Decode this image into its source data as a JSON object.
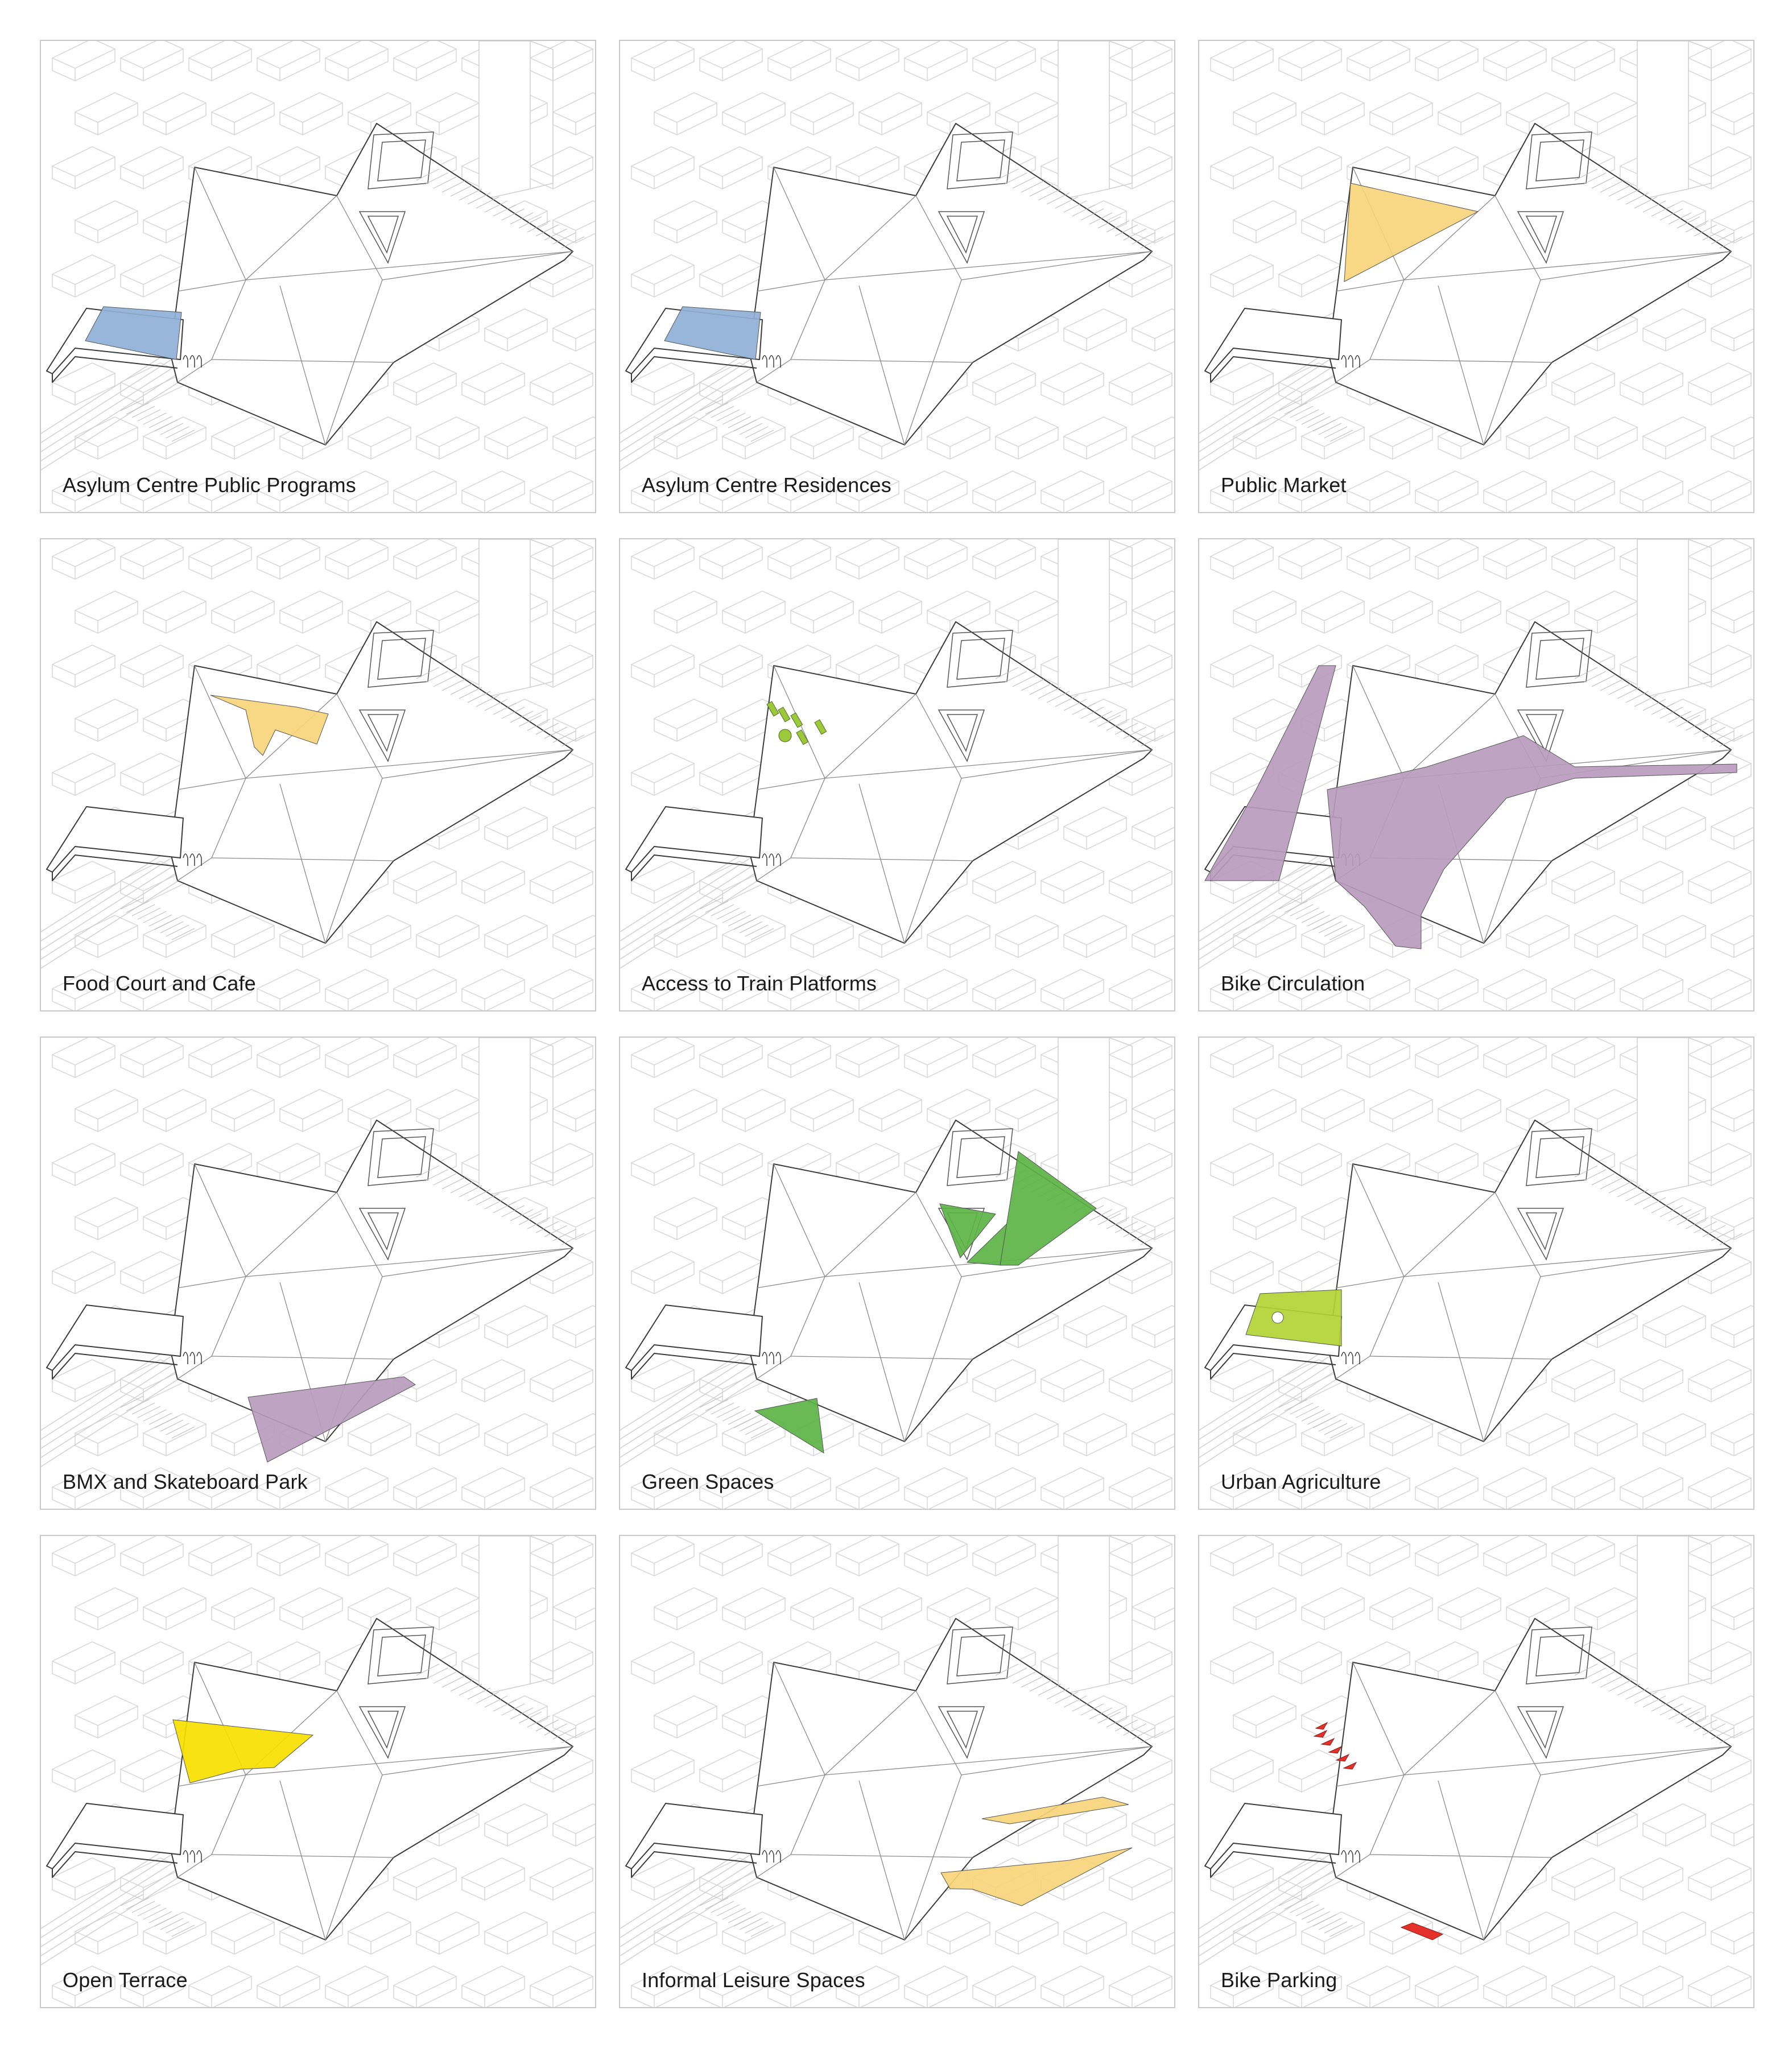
{
  "panels": [
    {
      "caption": "Asylum Centre Public Programs",
      "highlight": {
        "name": "public-programs-area",
        "color": "#8fb0d6"
      }
    },
    {
      "caption": "Asylum Centre Residences",
      "highlight": {
        "name": "residences-area",
        "color": "#8fb0d6"
      }
    },
    {
      "caption": "Public Market",
      "highlight": {
        "name": "public-market-area",
        "color": "#f7d57a"
      }
    },
    {
      "caption": "Food Court and Cafe",
      "highlight": {
        "name": "food-court-area",
        "color": "#f7d57a"
      }
    },
    {
      "caption": "Access to Train Platforms",
      "highlight": {
        "name": "train-access-area",
        "color": "#9cc93a"
      }
    },
    {
      "caption": "Bike Circulation",
      "highlight": {
        "name": "bike-circulation-area",
        "color": "#b99bbd"
      }
    },
    {
      "caption": "BMX and Skateboard Park",
      "highlight": {
        "name": "skatepark-area",
        "color": "#b99bbd"
      }
    },
    {
      "caption": "Green Spaces",
      "highlight": {
        "name": "green-spaces-area",
        "color": "#5cb345"
      }
    },
    {
      "caption": "Urban Agriculture",
      "highlight": {
        "name": "urban-agriculture-area",
        "color": "#b3d335"
      }
    },
    {
      "caption": "Open Terrace",
      "highlight": {
        "name": "open-terrace-area",
        "color": "#f7e000"
      }
    },
    {
      "caption": "Informal Leisure Spaces",
      "highlight": {
        "name": "leisure-spaces-area",
        "color": "#f7d57a"
      }
    },
    {
      "caption": "Bike Parking",
      "highlight": {
        "name": "bike-parking-area",
        "color": "#e4322b"
      }
    }
  ]
}
